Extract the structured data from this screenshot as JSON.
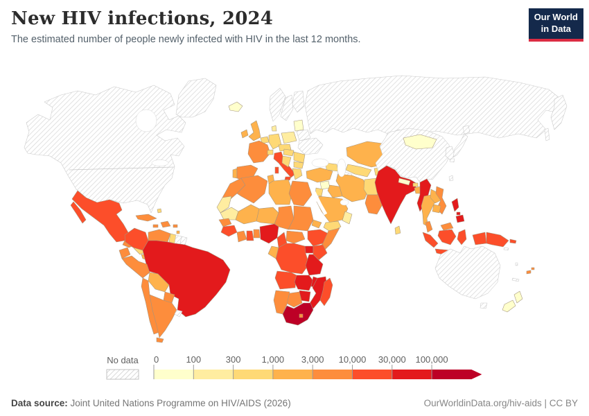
{
  "header": {
    "title": "New HIV infections, 2024",
    "subtitle": "The estimated number of people newly infected with HIV in the last 12 months.",
    "logo": {
      "line1": "Our World",
      "line2": "in Data",
      "bg": "#14294B",
      "accent": "#DC2C43"
    }
  },
  "legend": {
    "no_data_label": "No data",
    "ticks": [
      "0",
      "100",
      "300",
      "1,000",
      "3,000",
      "10,000",
      "30,000",
      "100,000"
    ]
  },
  "footer": {
    "datasource_label": "Data source:",
    "datasource": "Joint United Nations Programme on HIV/AIDS (2026)",
    "link": "OurWorldinData.org/hiv-aids | CC BY"
  },
  "chart_data": {
    "type": "choropleth_map",
    "title": "New HIV infections, 2024",
    "unit": "people newly infected with HIV in the last 12 months",
    "legend_position": "bottom",
    "bins": [
      {
        "label": "0-100",
        "color": "#FFFFCC"
      },
      {
        "label": "100-300",
        "color": "#FFEDA0"
      },
      {
        "label": "300-1,000",
        "color": "#FED976"
      },
      {
        "label": "1,000-3,000",
        "color": "#FEB24C"
      },
      {
        "label": "3,000-10,000",
        "color": "#FD8D3C"
      },
      {
        "label": "10,000-30,000",
        "color": "#FC4E2A"
      },
      {
        "label": "30,000-100,000",
        "color": "#E31A1C"
      },
      {
        "label": "100,000+",
        "color": "#BD0026"
      }
    ],
    "no_data": {
      "label": "No data",
      "style": "diagonal-hatch"
    },
    "regions": [
      {
        "id": "greenland",
        "name": "Greenland",
        "bin": -1
      },
      {
        "id": "canada-usa",
        "name": "Canada & United States",
        "bin": -1
      },
      {
        "id": "mexico",
        "name": "Mexico",
        "bin": 5
      },
      {
        "id": "guatemala",
        "name": "Guatemala",
        "bin": 4
      },
      {
        "id": "honduras-nicaragua",
        "name": "Honduras & Nicaragua",
        "bin": 2
      },
      {
        "id": "costa-rica-panama",
        "name": "Costa Rica & Panama",
        "bin": 3
      },
      {
        "id": "cuba",
        "name": "Cuba",
        "bin": 4
      },
      {
        "id": "jamaica",
        "name": "Jamaica",
        "bin": 4
      },
      {
        "id": "hispaniola",
        "name": "Haiti & Dominican Republic",
        "bin": 4
      },
      {
        "id": "puerto-rico",
        "name": "Puerto Rico",
        "bin": 4
      },
      {
        "id": "bahamas",
        "name": "Bahamas",
        "bin": 2
      },
      {
        "id": "lesser-antilles",
        "name": "Lesser Antilles",
        "bin": 3
      },
      {
        "id": "colombia",
        "name": "Colombia",
        "bin": 5
      },
      {
        "id": "venezuela",
        "name": "Venezuela",
        "bin": 4
      },
      {
        "id": "guyana",
        "name": "Guyana",
        "bin": 2
      },
      {
        "id": "suriname",
        "name": "Suriname",
        "bin": -1
      },
      {
        "id": "french-guiana",
        "name": "French Guiana",
        "bin": -1
      },
      {
        "id": "brazil",
        "name": "Brazil",
        "bin": 6
      },
      {
        "id": "ecuador",
        "name": "Ecuador",
        "bin": 4
      },
      {
        "id": "peru",
        "name": "Peru",
        "bin": 4
      },
      {
        "id": "bolivia",
        "name": "Bolivia",
        "bin": 3
      },
      {
        "id": "paraguay",
        "name": "Paraguay",
        "bin": 4
      },
      {
        "id": "chile",
        "name": "Chile",
        "bin": 4
      },
      {
        "id": "argentina",
        "name": "Argentina",
        "bin": 4
      },
      {
        "id": "uruguay",
        "name": "Uruguay",
        "bin": -1
      },
      {
        "id": "iceland",
        "name": "Iceland",
        "bin": 0
      },
      {
        "id": "ireland",
        "name": "Ireland",
        "bin": 3
      },
      {
        "id": "uk",
        "name": "United Kingdom",
        "bin": 3
      },
      {
        "id": "portugal",
        "name": "Portugal",
        "bin": 3
      },
      {
        "id": "spain",
        "name": "Spain",
        "bin": 4
      },
      {
        "id": "france",
        "name": "France",
        "bin": 4
      },
      {
        "id": "benelux",
        "name": "Belgium & Netherlands",
        "bin": 2
      },
      {
        "id": "germany",
        "name": "Germany",
        "bin": 2
      },
      {
        "id": "denmark",
        "name": "Denmark",
        "bin": 1
      },
      {
        "id": "poland",
        "name": "Poland",
        "bin": 1
      },
      {
        "id": "czech-austria",
        "name": "Czechia & Austria",
        "bin": 2
      },
      {
        "id": "switzerland",
        "name": "Switzerland",
        "bin": 2
      },
      {
        "id": "italy",
        "name": "Italy",
        "bin": 5
      },
      {
        "id": "norway",
        "name": "Norway",
        "bin": -1
      },
      {
        "id": "sweden",
        "name": "Sweden",
        "bin": -1
      },
      {
        "id": "finland",
        "name": "Finland",
        "bin": -1
      },
      {
        "id": "baltics",
        "name": "Baltic states",
        "bin": 0
      },
      {
        "id": "belarus",
        "name": "Belarus",
        "bin": -1
      },
      {
        "id": "ukraine",
        "name": "Ukraine",
        "bin": -1
      },
      {
        "id": "romania",
        "name": "Romania",
        "bin": 2
      },
      {
        "id": "hungary",
        "name": "Hungary",
        "bin": 2
      },
      {
        "id": "balkans",
        "name": "Western Balkans",
        "bin": 2
      },
      {
        "id": "bulgaria",
        "name": "Bulgaria",
        "bin": 2
      },
      {
        "id": "greece",
        "name": "Greece",
        "bin": 2
      },
      {
        "id": "russia",
        "name": "Russia",
        "bin": -1
      },
      {
        "id": "kazakhstan",
        "name": "Kazakhstan",
        "bin": 3
      },
      {
        "id": "uzbekistan",
        "name": "Uzbekistan",
        "bin": 2
      },
      {
        "id": "turkmenistan",
        "name": "Turkmenistan",
        "bin": -1
      },
      {
        "id": "kyrgyzstan-tajikistan",
        "name": "Kyrgyzstan & Tajikistan",
        "bin": 2
      },
      {
        "id": "caucasus",
        "name": "Caucasus",
        "bin": 2
      },
      {
        "id": "turkey",
        "name": "Turkey",
        "bin": 3
      },
      {
        "id": "syria",
        "name": "Syria",
        "bin": 0
      },
      {
        "id": "iraq",
        "name": "Iraq",
        "bin": 3
      },
      {
        "id": "jordan-israel",
        "name": "Jordan & Israel",
        "bin": 2
      },
      {
        "id": "saudi-arabia",
        "name": "Saudi Arabia",
        "bin": 3
      },
      {
        "id": "yemen",
        "name": "Yemen",
        "bin": 2
      },
      {
        "id": "oman",
        "name": "Oman",
        "bin": 1
      },
      {
        "id": "iran",
        "name": "Iran",
        "bin": 3
      },
      {
        "id": "afghanistan",
        "name": "Afghanistan",
        "bin": 2
      },
      {
        "id": "pakistan",
        "name": "Pakistan",
        "bin": 4
      },
      {
        "id": "india",
        "name": "India",
        "bin": 6
      },
      {
        "id": "nepal",
        "name": "Nepal",
        "bin": 0
      },
      {
        "id": "bhutan",
        "name": "Bhutan",
        "bin": 2
      },
      {
        "id": "bangladesh",
        "name": "Bangladesh",
        "bin": 3
      },
      {
        "id": "sri-lanka",
        "name": "Sri Lanka",
        "bin": 2
      },
      {
        "id": "myanmar",
        "name": "Myanmar",
        "bin": 6
      },
      {
        "id": "thailand",
        "name": "Thailand",
        "bin": 3
      },
      {
        "id": "laos",
        "name": "Laos",
        "bin": 3
      },
      {
        "id": "vietnam",
        "name": "Vietnam",
        "bin": 4
      },
      {
        "id": "cambodia",
        "name": "Cambodia",
        "bin": 3
      },
      {
        "id": "malaysia",
        "name": "Malaysia",
        "bin": 4
      },
      {
        "id": "indonesia",
        "name": "Indonesia",
        "bin": 5
      },
      {
        "id": "papua-new-guinea",
        "name": "Papua New Guinea",
        "bin": 5
      },
      {
        "id": "philippines",
        "name": "Philippines",
        "bin": 6
      },
      {
        "id": "china",
        "name": "China",
        "bin": -1
      },
      {
        "id": "mongolia",
        "name": "Mongolia",
        "bin": 0
      },
      {
        "id": "korea",
        "name": "North & South Korea",
        "bin": -1
      },
      {
        "id": "japan",
        "name": "Japan",
        "bin": -1
      },
      {
        "id": "taiwan",
        "name": "Taiwan",
        "bin": -1
      },
      {
        "id": "australia",
        "name": "Australia",
        "bin": -1
      },
      {
        "id": "new-zealand",
        "name": "New Zealand",
        "bin": 0
      },
      {
        "id": "fiji",
        "name": "Fiji",
        "bin": 4
      },
      {
        "id": "new-caledonia",
        "name": "New Caledonia",
        "bin": -1
      },
      {
        "id": "solomon-islands",
        "name": "Solomon Islands",
        "bin": -1
      },
      {
        "id": "vanuatu",
        "name": "Vanuatu",
        "bin": -1
      },
      {
        "id": "morocco",
        "name": "Morocco",
        "bin": 4
      },
      {
        "id": "western-sahara",
        "name": "Western Sahara",
        "bin": 1
      },
      {
        "id": "mauritania",
        "name": "Mauritania",
        "bin": 1
      },
      {
        "id": "algeria",
        "name": "Algeria",
        "bin": 4
      },
      {
        "id": "tunisia",
        "name": "Tunisia",
        "bin": 3
      },
      {
        "id": "libya",
        "name": "Libya",
        "bin": 3
      },
      {
        "id": "egypt",
        "name": "Egypt",
        "bin": 4
      },
      {
        "id": "mali",
        "name": "Mali",
        "bin": 3
      },
      {
        "id": "niger",
        "name": "Niger",
        "bin": 3
      },
      {
        "id": "chad",
        "name": "Chad",
        "bin": 4
      },
      {
        "id": "sudan",
        "name": "Sudan",
        "bin": 4
      },
      {
        "id": "eritrea",
        "name": "Eritrea & Djibouti",
        "bin": 3
      },
      {
        "id": "senegal",
        "name": "Senegal & Gambia",
        "bin": 4
      },
      {
        "id": "guinea-region",
        "name": "Guinea region",
        "bin": 5
      },
      {
        "id": "ivory-coast",
        "name": "Cote d'Ivoire",
        "bin": 4
      },
      {
        "id": "ghana",
        "name": "Ghana",
        "bin": 5
      },
      {
        "id": "togo-benin",
        "name": "Togo & Benin",
        "bin": 4
      },
      {
        "id": "nigeria",
        "name": "Nigeria",
        "bin": 6
      },
      {
        "id": "cameroon",
        "name": "Cameroon",
        "bin": 5
      },
      {
        "id": "car",
        "name": "Central African Republic",
        "bin": 4
      },
      {
        "id": "ethiopia",
        "name": "Ethiopia",
        "bin": 5
      },
      {
        "id": "somalia",
        "name": "Somalia",
        "bin": 4
      },
      {
        "id": "uganda",
        "name": "Uganda",
        "bin": 6
      },
      {
        "id": "kenya",
        "name": "Kenya",
        "bin": 5
      },
      {
        "id": "drc",
        "name": "Democratic Republic of Congo",
        "bin": 5
      },
      {
        "id": "gabon-congo",
        "name": "Gabon & Congo",
        "bin": 3
      },
      {
        "id": "tanzania",
        "name": "Tanzania",
        "bin": 6
      },
      {
        "id": "angola",
        "name": "Angola",
        "bin": 5
      },
      {
        "id": "zambia",
        "name": "Zambia",
        "bin": 6
      },
      {
        "id": "malawi",
        "name": "Malawi",
        "bin": 6
      },
      {
        "id": "mozambique",
        "name": "Mozambique",
        "bin": 6
      },
      {
        "id": "zimbabwe",
        "name": "Zimbabwe",
        "bin": 6
      },
      {
        "id": "botswana",
        "name": "Botswana",
        "bin": 4
      },
      {
        "id": "namibia",
        "name": "Namibia",
        "bin": 4
      },
      {
        "id": "south-africa",
        "name": "South Africa",
        "bin": 7
      },
      {
        "id": "lesotho",
        "name": "Lesotho",
        "bin": 4
      },
      {
        "id": "madagascar",
        "name": "Madagascar",
        "bin": 5
      }
    ]
  }
}
